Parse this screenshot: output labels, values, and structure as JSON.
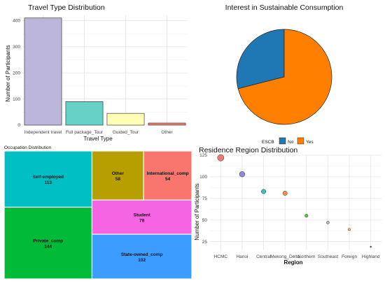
{
  "chart_data": [
    {
      "id": "travel",
      "type": "bar",
      "title": "Travel Type Distribution",
      "xlabel": "Travel Type",
      "ylabel": "Number of Participants",
      "categories": [
        "Independent travel",
        "Full package_Tour",
        "Guided_Tour",
        "Other"
      ],
      "values": [
        410,
        90,
        45,
        8
      ],
      "colors": [
        "#bcb7da",
        "#66d2c6",
        "#ffffb6",
        "#f28470"
      ],
      "ylim": [
        0,
        420
      ],
      "yticks": [
        0,
        100,
        200,
        300,
        400
      ],
      "grid": true
    },
    {
      "id": "sustain",
      "type": "pie",
      "title": "Interest in Sustainable Consumption",
      "legend_title": "ESCB",
      "legend_position": "bottom",
      "slices": [
        {
          "label": "No",
          "value": 29,
          "color": "#1f77b4"
        },
        {
          "label": "Yes",
          "value": 71,
          "color": "#ff8000"
        }
      ]
    },
    {
      "id": "occupation",
      "type": "treemap",
      "title": "Occupation Distribution",
      "items": [
        {
          "label": "Self-employed",
          "value": 113,
          "color": "#00bfc4"
        },
        {
          "label": "Private_comp",
          "value": 144,
          "color": "#00ba38"
        },
        {
          "label": "Other",
          "value": 58,
          "color": "#b79f00"
        },
        {
          "label": "International_comp",
          "value": 54,
          "color": "#f8766d"
        },
        {
          "label": "Student",
          "value": 78,
          "color": "#f564e3"
        },
        {
          "label": "State-owned_comp",
          "value": 102,
          "color": "#3d9cff"
        }
      ]
    },
    {
      "id": "region",
      "type": "scatter",
      "title": "Residence Region Distribution",
      "xlabel": "Region",
      "ylabel": "Number of Participants",
      "categories": [
        "HCMC",
        "Hanoi",
        "Central",
        "Mekong_Delta",
        "Northern",
        "Southeast",
        "Foreign",
        "Highland"
      ],
      "values": [
        122,
        103,
        83,
        81,
        55,
        47,
        39,
        19
      ],
      "colors": [
        "#f8766d",
        "#8e8cd6",
        "#3fbfb9",
        "#fc8d3c",
        "#5cc545",
        "#b5b5d8",
        "#f2c14e",
        "#5a3b8c"
      ],
      "ylim": [
        15,
        125
      ],
      "yticks": [
        25,
        50,
        75,
        100,
        125
      ],
      "grid": true
    }
  ]
}
